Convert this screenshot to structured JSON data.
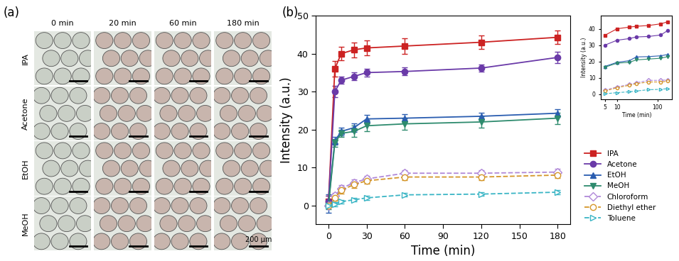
{
  "panel_a": {
    "label": "(a)",
    "columns": [
      "0 min",
      "20 min",
      "60 min",
      "180 min"
    ],
    "rows": [
      "IPA",
      "Acetone",
      "EtOH",
      "MeOH"
    ],
    "scale_bar": "200 μm"
  },
  "chart_data": [
    {
      "type": "line",
      "annotation": "(b)",
      "x_label": "Time (min)",
      "y_label": "Intensity (a.u.)",
      "x": [
        0,
        5,
        10,
        20,
        30,
        60,
        120,
        180
      ],
      "xlim": [
        -10,
        190
      ],
      "xticks": [
        0,
        30,
        60,
        90,
        120,
        150,
        180
      ],
      "ylim": [
        -5,
        50
      ],
      "yticks": [
        0,
        10,
        20,
        30,
        40,
        50
      ],
      "legend": "lower left",
      "series": [
        {
          "name": "IPA",
          "color": "#cc2222",
          "marker": "square",
          "line_style": "solid",
          "values": [
            1,
            36,
            40,
            41,
            41.5,
            42,
            43,
            44.3
          ],
          "errors": [
            1.5,
            2,
            1.8,
            2,
            2,
            2,
            1.8,
            1.8
          ]
        },
        {
          "name": "Acetone",
          "color": "#6a3aa8",
          "marker": "circle",
          "line_style": "solid",
          "values": [
            1,
            30,
            33,
            34,
            35,
            35.3,
            36.2,
            39
          ],
          "errors": [
            1.5,
            1.5,
            1,
            1,
            1,
            1,
            1,
            1.5
          ]
        },
        {
          "name": "EtOH",
          "color": "#2a5db0",
          "marker": "triangle_up",
          "line_style": "solid",
          "values": [
            0.5,
            17,
            19.5,
            20.5,
            22.8,
            23,
            23.5,
            24.3
          ],
          "errors": [
            2.5,
            1,
            1,
            1.2,
            1,
            1,
            1,
            1
          ]
        },
        {
          "name": "MeOH",
          "color": "#2e8b6e",
          "marker": "triangle_down",
          "line_style": "solid",
          "values": [
            0,
            16.5,
            19,
            19.5,
            21,
            21.5,
            22,
            23
          ],
          "errors": [
            1,
            1,
            1,
            1.5,
            1.5,
            1.5,
            1.5,
            1.5
          ]
        },
        {
          "name": "Chloroform",
          "color": "#b088d8",
          "marker": "open_diamond",
          "line_style": "dashed",
          "values": [
            0,
            2.5,
            4.5,
            6,
            7,
            8.5,
            8.5,
            8.8
          ],
          "errors": [
            0.5,
            0.8,
            0.8,
            0.8,
            0.8,
            0.8,
            0.8,
            0.8
          ]
        },
        {
          "name": "Diethyl ether",
          "color": "#d4962a",
          "marker": "open_circle",
          "line_style": "dashed",
          "values": [
            0,
            2,
            4,
            5.5,
            6.5,
            7.5,
            7.5,
            8
          ],
          "errors": [
            0.5,
            0.8,
            0.8,
            0.8,
            0.8,
            0.8,
            0.8,
            0.8
          ]
        },
        {
          "name": "Toluene",
          "color": "#3ab5c5",
          "marker": "open_triangle_right",
          "line_style": "dashed",
          "values": [
            0,
            0.3,
            1,
            1.5,
            2,
            2.8,
            3,
            3.5
          ],
          "errors": [
            0.5,
            0.5,
            0.5,
            0.5,
            0.5,
            0.5,
            0.5,
            0.5
          ]
        }
      ]
    },
    {
      "type": "line",
      "log": "x",
      "x_label": "Time (min)",
      "y_label": "Intensity (a.u.)",
      "x": [
        5,
        10,
        20,
        30,
        60,
        120,
        180
      ],
      "xlim": [
        4,
        230
      ],
      "xticks": [
        5,
        10,
        100
      ],
      "ylim": [
        -3,
        48
      ],
      "yticks": [
        0,
        10,
        20,
        30,
        40
      ],
      "series": [
        {
          "color": "#cc2222",
          "marker": "square",
          "line_style": "solid",
          "values": [
            36,
            40,
            41,
            41.5,
            42,
            43,
            44.3
          ]
        },
        {
          "color": "#6a3aa8",
          "marker": "circle",
          "line_style": "solid",
          "values": [
            30,
            33,
            34,
            35,
            35.3,
            36.2,
            39
          ]
        },
        {
          "color": "#2a5db0",
          "marker": "triangle_up",
          "line_style": "solid",
          "values": [
            17,
            19.5,
            20.5,
            22.8,
            23,
            23.5,
            24.3
          ]
        },
        {
          "color": "#2e8b6e",
          "marker": "triangle_down",
          "line_style": "solid",
          "values": [
            16.5,
            19,
            19.5,
            21,
            21.5,
            22,
            23
          ]
        },
        {
          "color": "#b088d8",
          "marker": "open_diamond",
          "line_style": "dashed",
          "values": [
            2.5,
            4.5,
            6,
            7,
            8.5,
            8.5,
            8.8
          ]
        },
        {
          "color": "#d4962a",
          "marker": "open_circle",
          "line_style": "dashed",
          "values": [
            2,
            4,
            5.5,
            6.5,
            7.5,
            7.5,
            8
          ]
        },
        {
          "color": "#3ab5c5",
          "marker": "open_triangle_right",
          "line_style": "dashed",
          "values": [
            0.3,
            1,
            1.5,
            2,
            2.8,
            3,
            3.5
          ]
        }
      ]
    }
  ]
}
